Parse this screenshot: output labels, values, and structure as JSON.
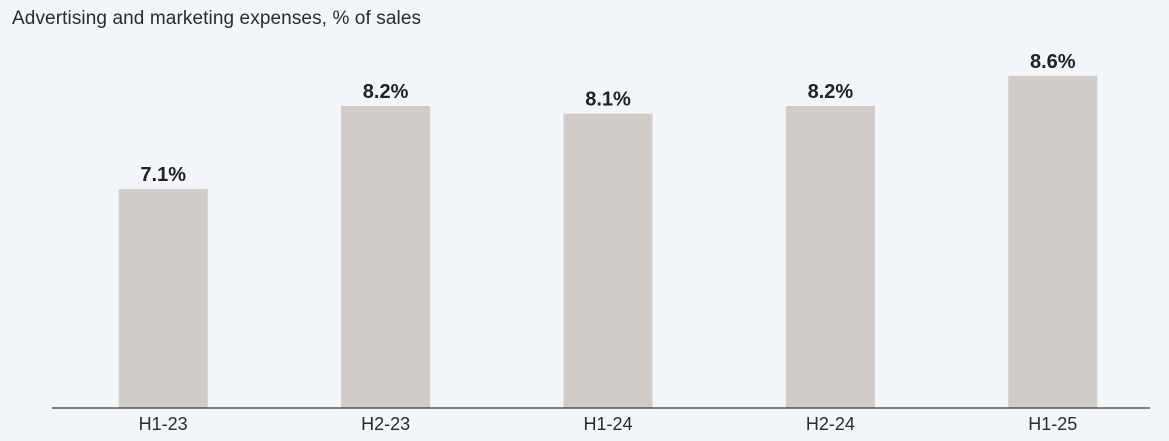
{
  "chart_data": {
    "type": "bar",
    "title": "Advertising and marketing expenses, % of sales",
    "categories": [
      "H1-23",
      "H2-23",
      "H1-24",
      "H2-24",
      "H1-25"
    ],
    "values": [
      7.1,
      8.2,
      8.1,
      8.2,
      8.6
    ],
    "data_labels": [
      "7.1%",
      "8.2%",
      "8.1%",
      "8.2%",
      "8.6%"
    ],
    "unit": "%",
    "ylim": [
      4.2,
      9.0
    ],
    "grid": false,
    "legend": "none",
    "colors": {
      "bar": "#d1ccc7",
      "axis": "#3a3a3a",
      "background": "#f2f6fb",
      "text": "#2b2b2b"
    }
  }
}
